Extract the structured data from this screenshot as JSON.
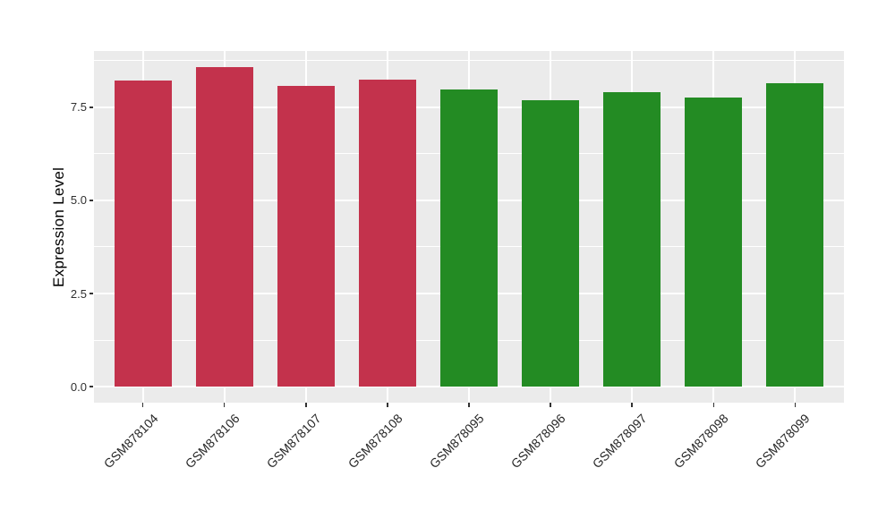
{
  "chart_data": {
    "type": "bar",
    "title": "",
    "xlabel": "",
    "ylabel": "Expression Level",
    "categories": [
      "GSM878104",
      "GSM878106",
      "GSM878107",
      "GSM878108",
      "GSM878095",
      "GSM878096",
      "GSM878097",
      "GSM878098",
      "GSM878099"
    ],
    "values": [
      8.22,
      8.58,
      8.07,
      8.24,
      7.97,
      7.68,
      7.91,
      7.77,
      8.15
    ],
    "bar_colors": [
      "#C3324C",
      "#C3324C",
      "#C3324C",
      "#C3324C",
      "#238B23",
      "#238B23",
      "#238B23",
      "#238B23",
      "#238B23"
    ],
    "group_colors": {
      "first-group": "#C3324C",
      "second-group": "#238B23"
    },
    "yticks": [
      0.0,
      2.5,
      5.0,
      7.5
    ],
    "ytick_labels": [
      "0.0",
      "2.5",
      "5.0",
      "7.5"
    ],
    "yminor": [
      1.25,
      3.75,
      6.25,
      8.75
    ],
    "ylim": [
      -0.43,
      9.01
    ],
    "bar_width_frac": 0.7,
    "x_label_angle": -45,
    "legend": "none",
    "grid": "on",
    "panel_bg": "#EBEBEB",
    "grid_color": "#FFFFFF"
  }
}
